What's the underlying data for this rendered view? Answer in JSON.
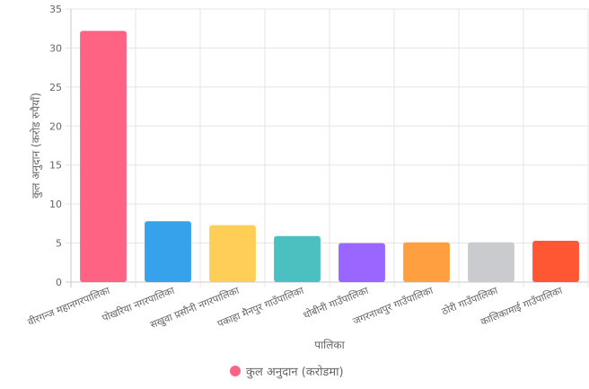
{
  "chart_data": {
    "type": "bar",
    "title": "",
    "xlabel": "पालिका",
    "ylabel": "कुल अनुदान (करोड रुपैयाँ)",
    "ylim": [
      0,
      35
    ],
    "yticks": [
      0,
      5,
      10,
      15,
      20,
      25,
      30,
      35
    ],
    "grid": true,
    "legend_position": "bottom",
    "categories": [
      "वीरगन्ज महानगरपालिका",
      "पोखरिया नगरपालिका",
      "सखुवा प्रसौनी नगरपालिका",
      "पकाहा मैनपुर गाउँपालिका",
      "धोबीनी गाउँपालिका",
      "जगरनाथपुर गाउँपालिका",
      "ठोरी गाउँपालिका",
      "कालिकामाई गाउँपालिका"
    ],
    "series": [
      {
        "name": "कुल अनुदान (करोडमा)",
        "values": [
          32.2,
          7.8,
          7.3,
          5.9,
          5.0,
          5.1,
          5.1,
          5.3
        ],
        "colors": [
          "#ff6384",
          "#36a2eb",
          "#ffce56",
          "#4bc0c0",
          "#9966ff",
          "#ff9f40",
          "#c9cbcf",
          "#ff5733"
        ]
      }
    ],
    "legend_color": "#ff6384"
  }
}
